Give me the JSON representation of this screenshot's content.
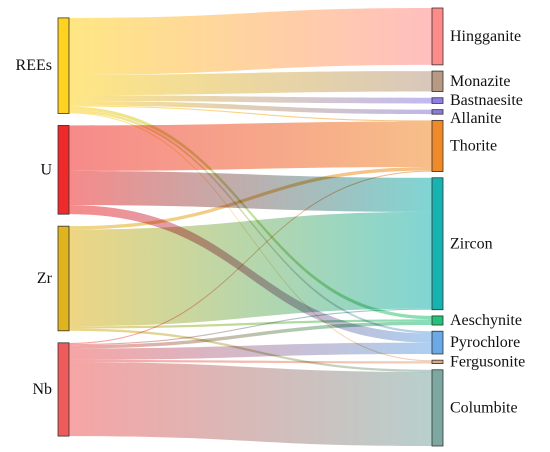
{
  "diagram": {
    "type": "sankey",
    "sources": [
      {
        "id": "REEs",
        "label": "REEs",
        "color": "#ffd21f"
      },
      {
        "id": "U",
        "label": "U",
        "color": "#ef2a2a"
      },
      {
        "id": "Zr",
        "label": "Zr",
        "color": "#e0b41e"
      },
      {
        "id": "Nb",
        "label": "Nb",
        "color": "#ef5a5a"
      }
    ],
    "targets": [
      {
        "id": "Hingganite",
        "label": "Hingganite",
        "color": "#ff8a8a"
      },
      {
        "id": "Monazite",
        "label": "Monazite",
        "color": "#b89a84"
      },
      {
        "id": "Bastnaesite",
        "label": "Bastnaesite",
        "color": "#8e7fe6"
      },
      {
        "id": "Allanite",
        "label": "Allanite",
        "color": "#8a7ad6"
      },
      {
        "id": "Thorite",
        "label": "Thorite",
        "color": "#f08a28"
      },
      {
        "id": "Zircon",
        "label": "Zircon",
        "color": "#17b3b0"
      },
      {
        "id": "Aeschynite",
        "label": "Aeschynite",
        "color": "#22c27a"
      },
      {
        "id": "Pyrochlore",
        "label": "Pyrochlore",
        "color": "#6aa8e6"
      },
      {
        "id": "Fergusonite",
        "label": "Fergusonite",
        "color": "#e2a880"
      },
      {
        "id": "Columbite",
        "label": "Columbite",
        "color": "#7da8a2"
      }
    ],
    "links": [
      {
        "source": "REEs",
        "target": "Hingganite",
        "value": 50
      },
      {
        "source": "REEs",
        "target": "Monazite",
        "value": 18
      },
      {
        "source": "REEs",
        "target": "Bastnaesite",
        "value": 5
      },
      {
        "source": "REEs",
        "target": "Allanite",
        "value": 4
      },
      {
        "source": "REEs",
        "target": "Thorite",
        "value": 1
      },
      {
        "source": "REEs",
        "target": "Aeschynite",
        "value": 3
      },
      {
        "source": "REEs",
        "target": "Pyrochlore",
        "value": 2
      },
      {
        "source": "REEs",
        "target": "Fergusonite",
        "value": 1
      },
      {
        "source": "U",
        "target": "Thorite",
        "value": 40
      },
      {
        "source": "U",
        "target": "Zircon",
        "value": 30
      },
      {
        "source": "U",
        "target": "Pyrochlore",
        "value": 8
      },
      {
        "source": "Zr",
        "target": "Thorite",
        "value": 3
      },
      {
        "source": "Zr",
        "target": "Zircon",
        "value": 85
      },
      {
        "source": "Zr",
        "target": "Aeschynite",
        "value": 2
      },
      {
        "source": "Zr",
        "target": "Columbite",
        "value": 2
      },
      {
        "source": "Nb",
        "target": "Thorite",
        "value": 1
      },
      {
        "source": "Nb",
        "target": "Zircon",
        "value": 1
      },
      {
        "source": "Nb",
        "target": "Aeschynite",
        "value": 3
      },
      {
        "source": "Nb",
        "target": "Pyrochlore",
        "value": 10
      },
      {
        "source": "Nb",
        "target": "Fergusonite",
        "value": 2
      },
      {
        "source": "Nb",
        "target": "Columbite",
        "value": 65
      }
    ]
  }
}
